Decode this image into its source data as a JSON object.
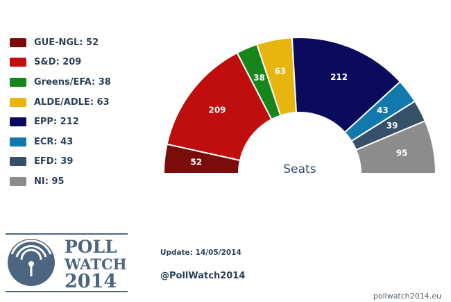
{
  "chart_data": {
    "type": "hemicycle",
    "center_label": "Seats",
    "series": [
      {
        "label": "GUE-NGL: 52",
        "party": "GUE-NGL",
        "seats": 52,
        "color": "#7b0c0c"
      },
      {
        "label": "S&D: 209",
        "party": "S&D",
        "seats": 209,
        "color": "#c00d0d"
      },
      {
        "label": "Greens/EFA: 38",
        "party": "Greens/EFA",
        "seats": 38,
        "color": "#15851c"
      },
      {
        "label": "ALDE/ADLE: 63",
        "party": "ALDE/ADLE",
        "seats": 63,
        "color": "#e7b50e"
      },
      {
        "label": "EPP: 212",
        "party": "EPP",
        "seats": 212,
        "color": "#0c0a5c"
      },
      {
        "label": "ECR: 43",
        "party": "ECR",
        "seats": 43,
        "color": "#1179ad"
      },
      {
        "label": "EFD: 39",
        "party": "EFD",
        "seats": 39,
        "color": "#36506a"
      },
      {
        "label": "NI: 95",
        "party": "NI",
        "seats": 95,
        "color": "#8c8c8c"
      }
    ],
    "legend_position": "left"
  },
  "footer": {
    "logo": {
      "line1": "POLL",
      "line2": "WATCH",
      "line3": "2014",
      "icon": "antenna-signal-icon"
    },
    "update": "Update: 14/05/2014",
    "handle": "@PollWatch2014",
    "site": "pollwatch2014.eu"
  }
}
